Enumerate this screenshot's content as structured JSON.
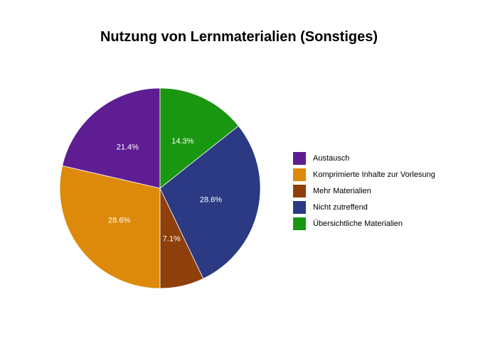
{
  "chart_data": {
    "type": "pie",
    "title": "Nutzung von Lernmaterialien (Sonstiges)",
    "categories": [
      "Austausch",
      "Komprimierte Inhalte zur Vorlesung",
      "Mehr Materialien",
      "Nicht zutreffend",
      "Übersichtliche Materialien"
    ],
    "values": [
      21.4,
      28.6,
      7.1,
      28.6,
      14.3
    ],
    "labels": [
      "21.4%",
      "28.6%",
      "7.1%",
      "28.6%",
      "14.3%"
    ],
    "colors": [
      "#5f1d93",
      "#dd8a0b",
      "#8f3f0a",
      "#2b3a82",
      "#1a9711"
    ],
    "legend_position": "right"
  }
}
